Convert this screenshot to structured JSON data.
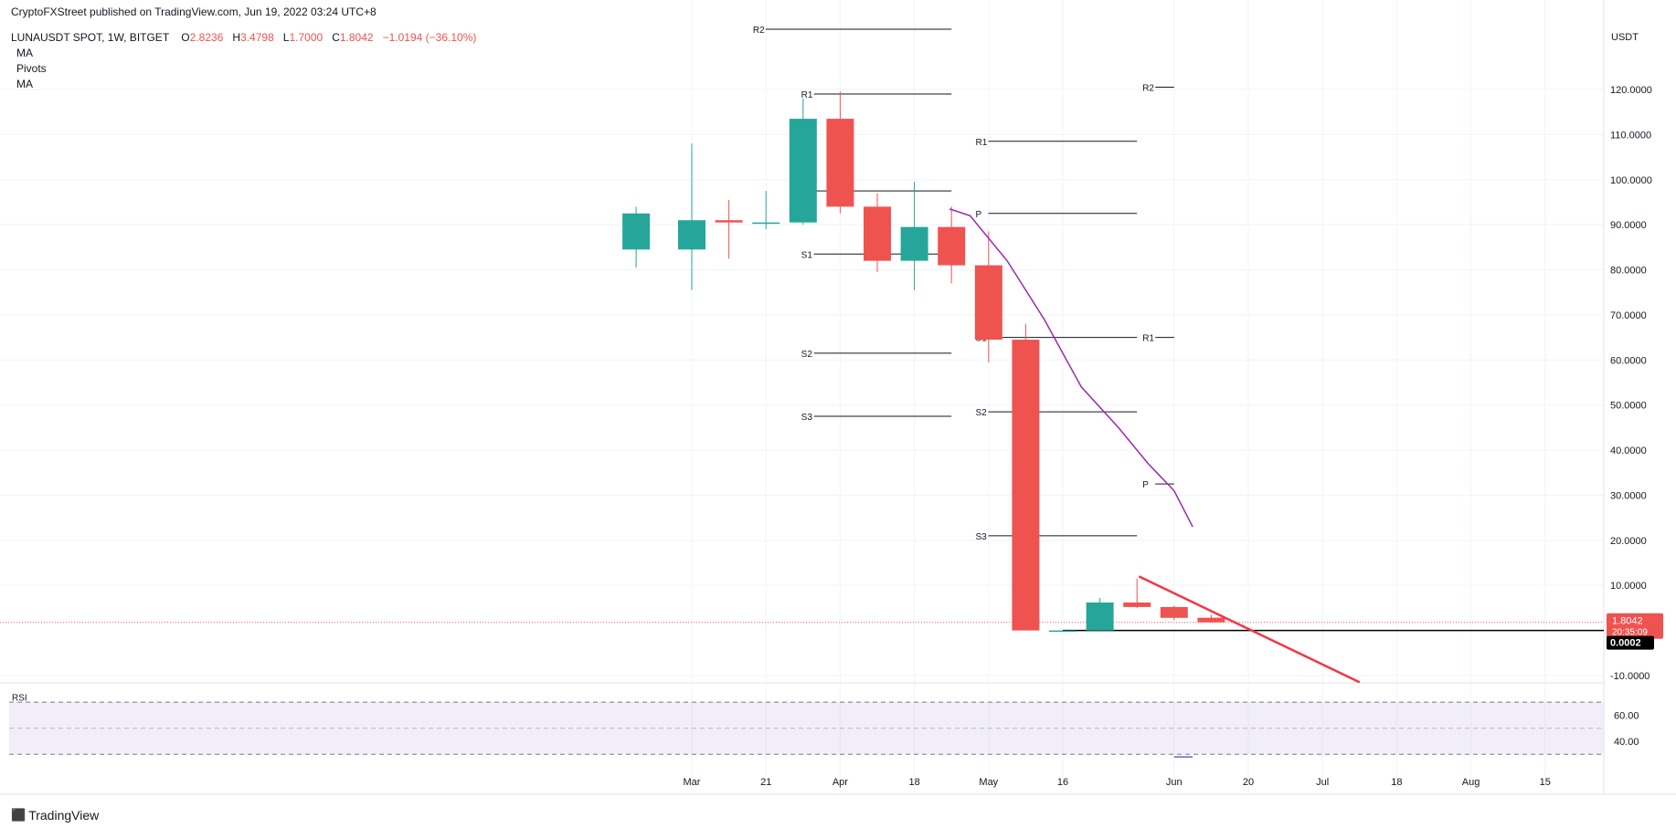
{
  "header": {
    "publisher": "CryptoFXStreet published on TradingView.com, Jun 19, 2022 03:24 UTC+8",
    "symbol": "LUNAUSDT SPOT, 1W, BITGET",
    "o_label": "O",
    "o_val": "2.8236",
    "h_label": "H",
    "h_val": "3.4798",
    "l_label": "L",
    "l_val": "1.7000",
    "c_label": "C",
    "c_val": "1.8042",
    "change": "−1.0194 (−36.10%)"
  },
  "legend": [
    "MA",
    "Pivots",
    "MA"
  ],
  "brand": {
    "name": "TradingView",
    "icon": "tradingview-logo-icon"
  },
  "colors": {
    "up": "#26a69a",
    "down": "#ef5350",
    "ma": "#9c27b0",
    "pivot": "#131722",
    "trend": "#f23645",
    "rsi_band": "#7e57c2"
  },
  "chart_data": {
    "type": "candlestick",
    "currency": "USDT",
    "y_range": [
      -12,
      128
    ],
    "y_ticks": [
      "120.0000",
      "110.0000",
      "100.0000",
      "90.0000",
      "80.0000",
      "70.0000",
      "60.0000",
      "50.0000",
      "40.0000",
      "30.0000",
      "20.0000",
      "10.0000",
      "-10.0000"
    ],
    "y_tick_values": [
      120,
      110,
      100,
      90,
      80,
      70,
      60,
      50,
      40,
      30,
      20,
      10,
      -10
    ],
    "x_labels": [
      {
        "label": "Mar",
        "week": 0
      },
      {
        "label": "21",
        "week": 2
      },
      {
        "label": "Apr",
        "week": 4
      },
      {
        "label": "18",
        "week": 6
      },
      {
        "label": "May",
        "week": 8
      },
      {
        "label": "16",
        "week": 10
      },
      {
        "label": "Jun",
        "week": 13
      },
      {
        "label": "20",
        "week": 15
      },
      {
        "label": "Jul",
        "week": 17
      },
      {
        "label": "18",
        "week": 19
      },
      {
        "label": "Aug",
        "week": 21
      },
      {
        "label": "15",
        "week": 23
      }
    ],
    "candles": [
      {
        "week": -1.5,
        "o": 84.5,
        "h": 94,
        "l": 80.5,
        "c": 92.5
      },
      {
        "week": 0,
        "o": 84.5,
        "h": 108,
        "l": 75.5,
        "c": 91
      },
      {
        "week": 1,
        "o": 91,
        "h": 95.5,
        "l": 82.5,
        "c": 90.5
      },
      {
        "week": 2,
        "o": 90.5,
        "h": 97.5,
        "l": 89,
        "c": 90.5
      },
      {
        "week": 3,
        "o": 90.5,
        "h": 118,
        "l": 90,
        "c": 113.5
      },
      {
        "week": 4,
        "o": 113.5,
        "h": 119.5,
        "l": 92.5,
        "c": 94
      },
      {
        "week": 5,
        "o": 94,
        "h": 97,
        "l": 79.5,
        "c": 82
      },
      {
        "week": 6,
        "o": 82,
        "h": 99.5,
        "l": 75.5,
        "c": 89.5
      },
      {
        "week": 7,
        "o": 89.5,
        "h": 94,
        "l": 77,
        "c": 81
      },
      {
        "week": 8,
        "o": 81,
        "h": 88.5,
        "l": 59.5,
        "c": 64.5
      },
      {
        "week": 9,
        "o": 64.5,
        "h": 68,
        "l": 0.0002,
        "c": 0.0002
      },
      {
        "week": 10,
        "o": 0.0002,
        "h": 0.0002,
        "l": 0.0002,
        "c": 0.0002
      },
      {
        "week": 11,
        "o": 0.0002,
        "h": 7.2,
        "l": 0.0002,
        "c": 6.2
      },
      {
        "week": 12,
        "o": 6.2,
        "h": 11.5,
        "l": 5,
        "c": 5.2
      },
      {
        "week": 13,
        "o": 5.2,
        "h": 5.5,
        "l": 2.3,
        "c": 2.8
      },
      {
        "week": 14,
        "o": 2.8236,
        "h": 3.4798,
        "l": 1.7,
        "c": 1.8042
      }
    ],
    "moving_average": [
      {
        "week": 6.95,
        "v": 93.5
      },
      {
        "week": 7.5,
        "v": 92
      },
      {
        "week": 8.5,
        "v": 82
      },
      {
        "week": 9.5,
        "v": 69
      },
      {
        "week": 10.5,
        "v": 54
      },
      {
        "week": 11.5,
        "v": 45
      },
      {
        "week": 12.3,
        "v": 37
      },
      {
        "week": 13,
        "v": 31
      },
      {
        "week": 13.5,
        "v": 23
      }
    ],
    "pivots": [
      {
        "label": "R2",
        "value": 140,
        "from": 1.5,
        "to": 7
      },
      {
        "label": "R1",
        "value": 119,
        "from": 2.8,
        "to": 7
      },
      {
        "label": "P",
        "value": 97.5,
        "from": 2.8,
        "to": 7
      },
      {
        "label": "S1",
        "value": 83.5,
        "from": 2.8,
        "to": 7
      },
      {
        "label": "S2",
        "value": 61.5,
        "from": 2.8,
        "to": 7
      },
      {
        "label": "S3",
        "value": 47.5,
        "from": 2.8,
        "to": 7
      },
      {
        "label": "R2",
        "value": 120.5,
        "from": 12,
        "to": 13
      },
      {
        "label": "R1",
        "value": 108.5,
        "from": 7.5,
        "to": 12
      },
      {
        "label": "P",
        "value": 92.5,
        "from": 7.5,
        "to": 12
      },
      {
        "label": "S1",
        "value": 65,
        "from": 7.5,
        "to": 12
      },
      {
        "label": "R1",
        "value": 65,
        "from": 12,
        "to": 13
      },
      {
        "label": "S2",
        "value": 48.5,
        "from": 7.5,
        "to": 12
      },
      {
        "label": "P",
        "value": 32.5,
        "from": 12,
        "to": 13
      },
      {
        "label": "S3",
        "value": 21,
        "from": 7.5,
        "to": 12
      }
    ],
    "support_line": {
      "value": 0.0002,
      "from": 10,
      "to": 25
    },
    "trendline": {
      "x1": 12.05,
      "y1": 12,
      "x2": 18.0,
      "y2": -11.5
    },
    "price_line": 1.8042,
    "last_price_label": "1.8042",
    "countdown": "20:35:09",
    "support_label": "0.0002",
    "rsi": {
      "label": "RSI",
      "ticks": [
        "60.00",
        "40.00"
      ],
      "tick_values": [
        60,
        40
      ],
      "upper_band": 70,
      "lower_band": 30,
      "range": [
        26,
        75
      ],
      "segment": {
        "x1": 13.0,
        "x2": 13.5,
        "v": 28
      }
    }
  }
}
